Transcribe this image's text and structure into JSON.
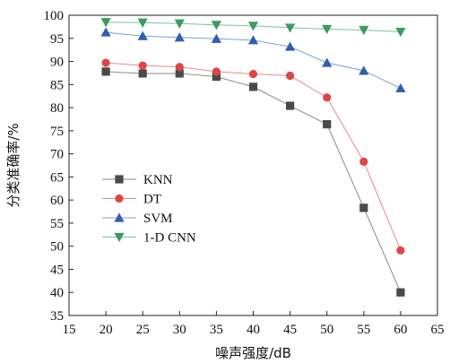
{
  "chart_data": {
    "type": "line",
    "xlabel": "噪声强度/dB",
    "ylabel": "分类准确率/%",
    "xlim": [
      15,
      65
    ],
    "ylim": [
      35,
      100
    ],
    "xticks": [
      15,
      20,
      25,
      30,
      35,
      40,
      45,
      50,
      55,
      60,
      65
    ],
    "yticks": [
      35,
      40,
      45,
      50,
      55,
      60,
      65,
      70,
      75,
      80,
      85,
      90,
      95,
      100
    ],
    "grid": false,
    "legend_position": "lower-left",
    "x": [
      20,
      25,
      30,
      35,
      40,
      45,
      50,
      55,
      60
    ],
    "series": [
      {
        "name": "KNN",
        "marker": "square",
        "color": "#4a4a4a",
        "line_color": "#8a8a8a",
        "values": [
          87.8,
          87.4,
          87.4,
          86.7,
          84.5,
          80.4,
          76.4,
          58.3,
          40.0
        ]
      },
      {
        "name": "DT",
        "marker": "circle",
        "color": "#e04545",
        "line_color": "#e88a8a",
        "values": [
          89.7,
          89.1,
          88.8,
          87.8,
          87.3,
          86.9,
          82.2,
          68.3,
          49.1
        ]
      },
      {
        "name": "SVM",
        "marker": "triangle-up",
        "color": "#2f5fb0",
        "line_color": "#7f9fd4",
        "values": [
          96.3,
          95.5,
          95.2,
          94.9,
          94.6,
          93.2,
          89.7,
          88.0,
          84.2
        ]
      },
      {
        "name": "1-D CNN",
        "marker": "triangle-down",
        "color": "#3c9a5f",
        "line_color": "#7cc49a",
        "values": [
          98.5,
          98.4,
          98.2,
          97.9,
          97.7,
          97.3,
          97.0,
          96.8,
          96.4
        ]
      }
    ]
  }
}
